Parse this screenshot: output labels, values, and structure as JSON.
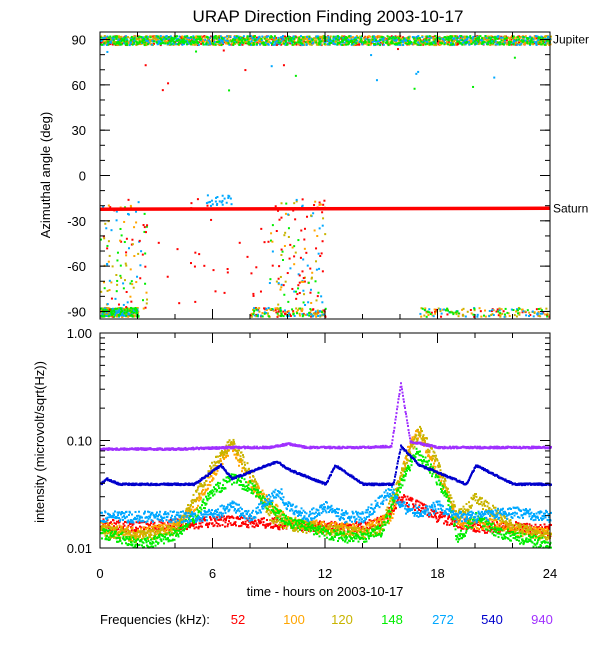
{
  "chart_data": [
    {
      "type": "scatter",
      "title": "URAP Direction Finding  2003-10-17",
      "xlabel": "",
      "ylabel": "Azimuthal angle (deg)",
      "xlim": [
        0,
        24
      ],
      "ylim": [
        -95,
        95
      ],
      "yticks": [
        -90,
        -60,
        -30,
        0,
        30,
        60,
        90
      ],
      "ytick_labels": [
        "-90",
        "-60",
        "-30",
        "0",
        "30",
        "60",
        "90"
      ],
      "reference_lines": [
        {
          "label": "Jupiter",
          "y": 90,
          "color": "#000000"
        },
        {
          "label": "Saturn",
          "y": -22,
          "color": "#ff0000"
        }
      ],
      "series": [
        {
          "name": "52",
          "color": "#ff0000",
          "near_jupiter": 90,
          "near_saturn": -22
        },
        {
          "name": "100",
          "color": "#ffa500",
          "near_jupiter": 90
        },
        {
          "name": "120",
          "color": "#c8b400",
          "near_jupiter": 90
        },
        {
          "name": "148",
          "color": "#00ee00",
          "near_jupiter": 90
        },
        {
          "name": "272",
          "color": "#00a8ff",
          "near_jupiter": 89
        },
        {
          "name": "540",
          "color": "#0000cc"
        },
        {
          "name": "940",
          "color": "#a030ff"
        }
      ]
    },
    {
      "type": "line",
      "xlabel": "time - hours on 2003-10-17",
      "ylabel": "intensity (microvolt/sqrt(Hz))",
      "xlim": [
        0,
        24
      ],
      "ylim": [
        0.01,
        1.0
      ],
      "y_scale": "log",
      "xticks": [
        0,
        6,
        12,
        18,
        24
      ],
      "xtick_labels": [
        "0",
        "6",
        "12",
        "18",
        "24"
      ],
      "yticks": [
        0.01,
        0.1,
        1.0
      ],
      "ytick_labels": [
        "0.01",
        "0.10",
        "1.00"
      ],
      "series": [
        {
          "name": "940",
          "color": "#a030ff",
          "x": [
            0,
            4,
            7,
            9,
            10,
            11,
            14,
            15.5,
            16,
            16.5,
            18,
            20,
            22,
            24
          ],
          "y": [
            0.085,
            0.085,
            0.088,
            0.088,
            0.095,
            0.088,
            0.088,
            0.09,
            0.35,
            0.1,
            0.088,
            0.088,
            0.088,
            0.088
          ]
        },
        {
          "name": "540",
          "color": "#0000cc",
          "x": [
            0,
            0.3,
            1,
            5,
            6.4,
            7,
            9.4,
            10,
            12,
            12.5,
            14,
            15.6,
            16,
            17,
            19.5,
            20,
            22,
            24
          ],
          "y": [
            0.04,
            0.045,
            0.04,
            0.04,
            0.06,
            0.045,
            0.065,
            0.055,
            0.04,
            0.06,
            0.04,
            0.04,
            0.09,
            0.06,
            0.04,
            0.06,
            0.04,
            0.04
          ]
        },
        {
          "name": "272",
          "color": "#00a8ff",
          "x": [
            0,
            3,
            5,
            6,
            7,
            8,
            9.5,
            10,
            11,
            12,
            13,
            14,
            15.5,
            16,
            17,
            18,
            19,
            20,
            22,
            24
          ],
          "y": [
            0.02,
            0.02,
            0.02,
            0.021,
            0.025,
            0.02,
            0.035,
            0.025,
            0.02,
            0.025,
            0.02,
            0.02,
            0.035,
            0.025,
            0.022,
            0.025,
            0.02,
            0.02,
            0.022,
            0.02
          ]
        },
        {
          "name": "148",
          "color": "#00ee00",
          "x": [
            0,
            1,
            2,
            3,
            4,
            5,
            6,
            7,
            8,
            9,
            10,
            11,
            12,
            13,
            14,
            15,
            16,
            16.8,
            17.5,
            18.5,
            19,
            20,
            21,
            22,
            23,
            24
          ],
          "y": [
            0.014,
            0.013,
            0.011,
            0.012,
            0.014,
            0.02,
            0.035,
            0.045,
            0.038,
            0.025,
            0.018,
            0.016,
            0.014,
            0.013,
            0.013,
            0.015,
            0.04,
            0.08,
            0.06,
            0.03,
            0.012,
            0.02,
            0.015,
            0.013,
            0.012,
            0.011
          ]
        },
        {
          "name": "120",
          "color": "#c8b400",
          "x": [
            0,
            2,
            4,
            5,
            6,
            7,
            8,
            9,
            10,
            12,
            14,
            15,
            16,
            17,
            18,
            19,
            20,
            22,
            24
          ],
          "y": [
            0.015,
            0.013,
            0.015,
            0.03,
            0.06,
            0.1,
            0.05,
            0.02,
            0.017,
            0.015,
            0.014,
            0.016,
            0.05,
            0.13,
            0.06,
            0.02,
            0.03,
            0.016,
            0.013
          ]
        },
        {
          "name": "100",
          "color": "#ffa500",
          "x": [
            0,
            2,
            4,
            5,
            6.5,
            7,
            8,
            10,
            12,
            14,
            15.5,
            16.5,
            17,
            18,
            19,
            21,
            22,
            24
          ],
          "y": [
            0.016,
            0.014,
            0.016,
            0.025,
            0.07,
            0.09,
            0.04,
            0.018,
            0.016,
            0.015,
            0.02,
            0.1,
            0.12,
            0.05,
            0.018,
            0.017,
            0.015,
            0.014
          ]
        },
        {
          "name": "52",
          "color": "#ff0000",
          "x": [
            0,
            2,
            4,
            6,
            8,
            10,
            12,
            14,
            15,
            16,
            18,
            20,
            22,
            24
          ],
          "y": [
            0.017,
            0.016,
            0.017,
            0.018,
            0.018,
            0.017,
            0.016,
            0.016,
            0.018,
            0.03,
            0.02,
            0.016,
            0.016,
            0.015
          ]
        }
      ]
    }
  ],
  "legend": {
    "label": "Frequencies (kHz):",
    "items": [
      {
        "text": "52",
        "color": "#ff0000"
      },
      {
        "text": "100",
        "color": "#ffa500"
      },
      {
        "text": "120",
        "color": "#c8b400"
      },
      {
        "text": "148",
        "color": "#00ee00"
      },
      {
        "text": "272",
        "color": "#00a8ff"
      },
      {
        "text": "540",
        "color": "#0000cc"
      },
      {
        "text": "940",
        "color": "#a030ff"
      }
    ]
  }
}
